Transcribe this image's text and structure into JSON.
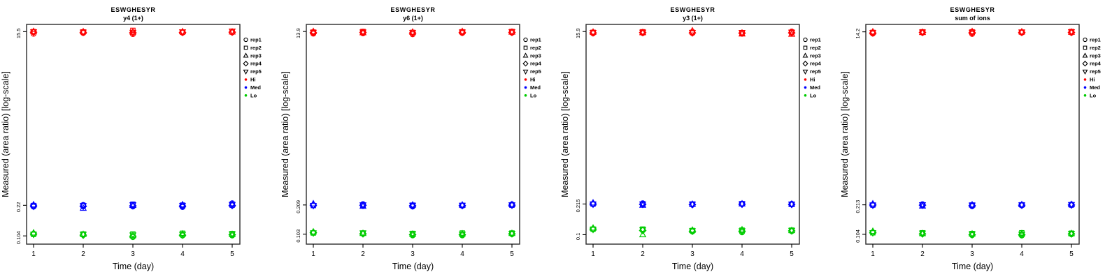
{
  "figure": {
    "background": "#ffffff",
    "box_color": "#2b2b2b",
    "tick_color": "#000000"
  },
  "legend": {
    "rep_items": [
      {
        "label": "rep1",
        "marker": "circle"
      },
      {
        "label": "rep2",
        "marker": "square"
      },
      {
        "label": "rep3",
        "marker": "triangle-up"
      },
      {
        "label": "rep4",
        "marker": "diamond"
      },
      {
        "label": "rep5",
        "marker": "triangle-down"
      }
    ],
    "level_items": [
      {
        "label": "Hi",
        "color": "#ff0000"
      },
      {
        "label": "Med",
        "color": "#0000ff"
      },
      {
        "label": "Lo",
        "color": "#00cc00"
      }
    ]
  },
  "chart_data": [
    {
      "type": "scatter",
      "title": "ESWGHESYR",
      "subtitle": "y4 (1+)",
      "xlabel": "Time (day)",
      "ylabel": "Measured (area ratio) [log-scale]",
      "x_ticks": [
        "1",
        "2",
        "3",
        "4",
        "5"
      ],
      "y_scale": "log",
      "y_tick_labels": [
        "15.5",
        "0.22",
        "0.104"
      ],
      "y_tick_values": [
        15.5,
        0.22,
        0.104
      ],
      "ylim": [
        0.085,
        18.5
      ],
      "xlim": [
        0.5,
        5.5
      ],
      "grid": false,
      "legend_position": "right",
      "reps": [
        "rep1",
        "rep2",
        "rep3",
        "rep4",
        "rep5"
      ],
      "series": [
        {
          "name": "Hi",
          "color": "#ff0000",
          "values_by_day": [
            [
              14.7,
              15.5,
              15.6,
              15.3,
              15.4
            ],
            [
              15.0,
              15.4,
              15.5,
              15.2,
              15.3
            ],
            [
              14.6,
              16.0,
              15.4,
              15.1,
              15.2
            ],
            [
              15.1,
              15.3,
              15.5,
              15.2,
              15.4
            ],
            [
              15.2,
              15.6,
              15.4,
              15.3,
              15.7
            ]
          ]
        },
        {
          "name": "Med",
          "color": "#0000ff",
          "values_by_day": [
            [
              0.213,
              0.219,
              0.223,
              0.217,
              0.215
            ],
            [
              0.222,
              0.219,
              0.205,
              0.215,
              0.218
            ],
            [
              0.214,
              0.226,
              0.22,
              0.217,
              0.222
            ],
            [
              0.211,
              0.221,
              0.223,
              0.216,
              0.218
            ],
            [
              0.231,
              0.221,
              0.226,
              0.219,
              0.224
            ]
          ]
        },
        {
          "name": "Lo",
          "color": "#00cc00",
          "values_by_day": [
            [
              0.11,
              0.108,
              0.112,
              0.109,
              0.108
            ],
            [
              0.107,
              0.109,
              0.108,
              0.106,
              0.108
            ],
            [
              0.101,
              0.109,
              0.105,
              0.103,
              0.106
            ],
            [
              0.105,
              0.111,
              0.109,
              0.106,
              0.108
            ],
            [
              0.105,
              0.11,
              0.108,
              0.107,
              0.109
            ]
          ]
        }
      ]
    },
    {
      "type": "scatter",
      "title": "ESWGHESYR",
      "subtitle": "y6 (1+)",
      "xlabel": "Time (day)",
      "ylabel": "Measured (area ratio) [log-scale]",
      "x_ticks": [
        "1",
        "2",
        "3",
        "4",
        "5"
      ],
      "y_scale": "log",
      "y_tick_labels": [
        "13.9",
        "0.209",
        "0.103"
      ],
      "y_tick_values": [
        13.9,
        0.209,
        0.103
      ],
      "ylim": [
        0.081,
        16.5
      ],
      "xlim": [
        0.5,
        5.5
      ],
      "grid": false,
      "legend_position": "right",
      "reps": [
        "rep1",
        "rep2",
        "rep3",
        "rep4",
        "rep5"
      ],
      "series": [
        {
          "name": "Hi",
          "color": "#ff0000",
          "values_by_day": [
            [
              13.2,
              13.7,
              13.9,
              13.5,
              13.6
            ],
            [
              13.3,
              13.9,
              13.5,
              13.6,
              13.7
            ],
            [
              13.0,
              13.6,
              13.7,
              13.4,
              13.5
            ],
            [
              13.4,
              13.8,
              13.9,
              13.6,
              13.7
            ],
            [
              13.5,
              13.9,
              13.7,
              13.6,
              13.8
            ]
          ]
        },
        {
          "name": "Med",
          "color": "#0000ff",
          "values_by_day": [
            [
              0.207,
              0.206,
              0.215,
              0.208,
              0.206
            ],
            [
              0.213,
              0.207,
              0.203,
              0.207,
              0.209
            ],
            [
              0.201,
              0.208,
              0.209,
              0.205,
              0.207
            ],
            [
              0.205,
              0.207,
              0.209,
              0.206,
              0.207
            ],
            [
              0.212,
              0.208,
              0.211,
              0.208,
              0.209
            ]
          ]
        },
        {
          "name": "Lo",
          "color": "#00cc00",
          "values_by_day": [
            [
              0.107,
              0.106,
              0.109,
              0.107,
              0.106
            ],
            [
              0.104,
              0.106,
              0.105,
              0.104,
              0.106
            ],
            [
              0.1,
              0.105,
              0.103,
              0.102,
              0.104
            ],
            [
              0.1,
              0.106,
              0.104,
              0.102,
              0.103
            ],
            [
              0.103,
              0.106,
              0.105,
              0.104,
              0.105
            ]
          ]
        }
      ]
    },
    {
      "type": "scatter",
      "title": "ESWGHESYR",
      "subtitle": "y3 (1+)",
      "xlabel": "Time (day)",
      "ylabel": "Measured (area ratio) [log-scale]",
      "x_ticks": [
        "1",
        "2",
        "3",
        "4",
        "5"
      ],
      "y_scale": "log",
      "y_tick_labels": [
        "15.9",
        "0.215",
        "0.1"
      ],
      "y_tick_values": [
        15.9,
        0.215,
        0.1
      ],
      "ylim": [
        0.079,
        19.0
      ],
      "xlim": [
        0.5,
        5.5
      ],
      "grid": false,
      "legend_position": "right",
      "reps": [
        "rep1",
        "rep2",
        "rep3",
        "rep4",
        "rep5"
      ],
      "series": [
        {
          "name": "Hi",
          "color": "#ff0000",
          "values_by_day": [
            [
              15.2,
              15.6,
              15.7,
              15.4,
              15.5
            ],
            [
              15.3,
              15.8,
              15.5,
              15.5,
              15.6
            ],
            [
              15.3,
              15.6,
              16.2,
              15.4,
              15.5
            ],
            [
              15.4,
              15.2,
              15.0,
              15.3,
              15.5
            ],
            [
              15.9,
              15.5,
              14.9,
              15.4,
              15.6
            ]
          ]
        },
        {
          "name": "Med",
          "color": "#0000ff",
          "values_by_day": [
            [
              0.214,
              0.215,
              0.221,
              0.215,
              0.214
            ],
            [
              0.219,
              0.214,
              0.209,
              0.213,
              0.215
            ],
            [
              0.211,
              0.215,
              0.214,
              0.212,
              0.214
            ],
            [
              0.214,
              0.217,
              0.216,
              0.214,
              0.215
            ],
            [
              0.216,
              0.213,
              0.215,
              0.213,
              0.214
            ]
          ]
        },
        {
          "name": "Lo",
          "color": "#00cc00",
          "values_by_day": [
            [
              0.114,
              0.115,
              0.118,
              0.115,
              0.114
            ],
            [
              0.112,
              0.115,
              0.1,
              0.111,
              0.113
            ],
            [
              0.108,
              0.111,
              0.112,
              0.109,
              0.11
            ],
            [
              0.106,
              0.112,
              0.113,
              0.109,
              0.11
            ],
            [
              0.109,
              0.112,
              0.111,
              0.11,
              0.111
            ]
          ]
        }
      ]
    },
    {
      "type": "scatter",
      "title": "ESWGHESYR",
      "subtitle": "sum of ions",
      "xlabel": "Time (day)",
      "ylabel": "Measured (area ratio) [log-scale]",
      "x_ticks": [
        "1",
        "2",
        "3",
        "4",
        "5"
      ],
      "y_scale": "log",
      "y_tick_labels": [
        "14.2",
        "0.213",
        "0.104"
      ],
      "y_tick_values": [
        14.2,
        0.213,
        0.104
      ],
      "ylim": [
        0.082,
        17.0
      ],
      "xlim": [
        0.5,
        5.5
      ],
      "grid": false,
      "legend_position": "right",
      "reps": [
        "rep1",
        "rep2",
        "rep3",
        "rep4",
        "rep5"
      ],
      "series": [
        {
          "name": "Hi",
          "color": "#ff0000",
          "values_by_day": [
            [
              13.6,
              14.0,
              14.2,
              13.8,
              13.9
            ],
            [
              13.9,
              14.2,
              14.0,
              14.0,
              14.1
            ],
            [
              13.5,
              14.2,
              14.3,
              13.9,
              14.0
            ],
            [
              13.9,
              14.1,
              14.2,
              14.0,
              14.1
            ],
            [
              13.9,
              14.3,
              14.1,
              14.0,
              14.2
            ]
          ]
        },
        {
          "name": "Med",
          "color": "#0000ff",
          "values_by_day": [
            [
              0.211,
              0.212,
              0.218,
              0.212,
              0.211
            ],
            [
              0.216,
              0.212,
              0.207,
              0.211,
              0.213
            ],
            [
              0.206,
              0.212,
              0.213,
              0.209,
              0.211
            ],
            [
              0.21,
              0.213,
              0.214,
              0.211,
              0.212
            ],
            [
              0.215,
              0.212,
              0.215,
              0.212,
              0.214
            ]
          ]
        },
        {
          "name": "Lo",
          "color": "#00cc00",
          "values_by_day": [
            [
              0.109,
              0.108,
              0.112,
              0.109,
              0.108
            ],
            [
              0.105,
              0.108,
              0.106,
              0.105,
              0.107
            ],
            [
              0.102,
              0.106,
              0.105,
              0.103,
              0.105
            ],
            [
              0.101,
              0.108,
              0.106,
              0.103,
              0.104
            ],
            [
              0.104,
              0.107,
              0.106,
              0.105,
              0.106
            ]
          ]
        }
      ]
    }
  ]
}
